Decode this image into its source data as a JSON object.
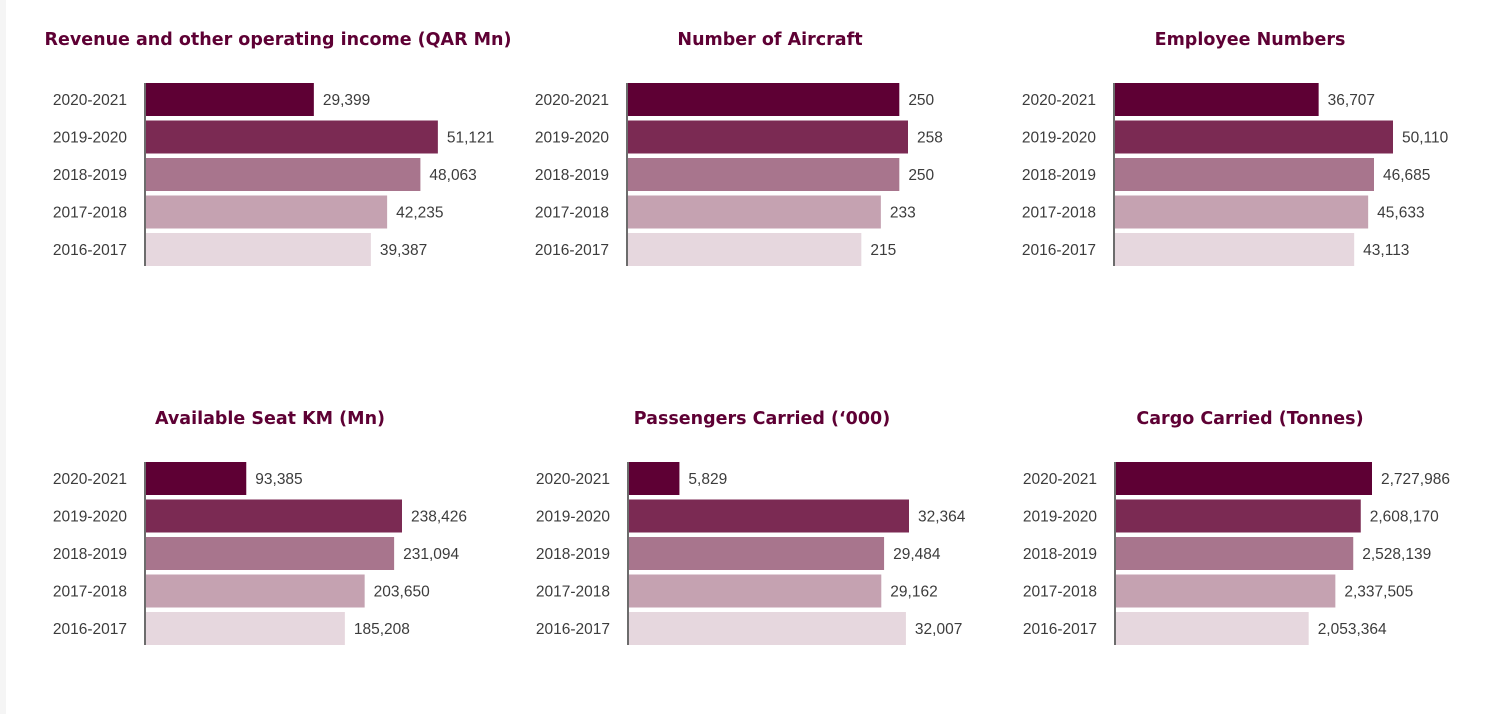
{
  "chart_data": [
    {
      "type": "bar",
      "title": "Revenue and other operating income (QAR Mn)",
      "categories": [
        "2020-2021",
        "2019-2020",
        "2018-2019",
        "2017-2018",
        "2016-2017"
      ],
      "values": [
        29399,
        51121,
        48063,
        42235,
        39387
      ],
      "value_labels": [
        "29,399",
        "51,121",
        "48,063",
        "42,235",
        "39,387"
      ],
      "xlim": [
        0,
        57100
      ]
    },
    {
      "type": "bar",
      "title": "Number of Aircraft",
      "categories": [
        "2020-2021",
        "2019-2020",
        "2018-2019",
        "2017-2018",
        "2016-2017"
      ],
      "values": [
        250,
        258,
        250,
        233,
        215
      ],
      "value_labels": [
        "250",
        "258",
        "250",
        "233",
        "215"
      ],
      "xlim": [
        0,
        258
      ]
    },
    {
      "type": "bar",
      "title": "Employee Numbers",
      "categories": [
        "2020-2021",
        "2019-2020",
        "2018-2019",
        "2017-2018",
        "2016-2017"
      ],
      "values": [
        36707,
        50110,
        46685,
        45633,
        43113
      ],
      "value_labels": [
        "36,707",
        "50,110",
        "46,685",
        "45,633",
        "43,113"
      ],
      "xlim": [
        0,
        50110
      ]
    },
    {
      "type": "bar",
      "title": "Available Seat KM (Mn)",
      "categories": [
        "2020-2021",
        "2019-2020",
        "2018-2019",
        "2017-2018",
        "2016-2017"
      ],
      "values": [
        93385,
        238426,
        231094,
        203650,
        185208
      ],
      "value_labels": [
        "93,385",
        "238,426",
        "231,094",
        "203,650",
        "185,208"
      ],
      "xlim": [
        0,
        238426
      ]
    },
    {
      "type": "bar",
      "title": "Passengers Carried (‘000)",
      "categories": [
        "2020-2021",
        "2019-2020",
        "2018-2019",
        "2017-2018",
        "2016-2017"
      ],
      "values": [
        5829,
        32364,
        29484,
        29162,
        32007
      ],
      "value_labels": [
        "5,829",
        "32,364",
        "29,484",
        "29,162",
        "32,007"
      ],
      "xlim": [
        0,
        32364
      ]
    },
    {
      "type": "bar",
      "title": "Cargo Carried (Tonnes)",
      "categories": [
        "2020-2021",
        "2019-2020",
        "2018-2019",
        "2017-2018",
        "2016-2017"
      ],
      "values": [
        2727986,
        2608170,
        2528139,
        2337505,
        2053364
      ],
      "value_labels": [
        "2,727,986",
        "2,608,170",
        "2,528,139",
        "2,337,505",
        "2,053,364"
      ],
      "xlim": [
        0,
        2727986
      ]
    }
  ],
  "colors": [
    "#5e0034",
    "#7b2a53",
    "#a8758d",
    "#c5a2b1",
    "#e6d7de"
  ],
  "axis_color": "#3c3c3c"
}
